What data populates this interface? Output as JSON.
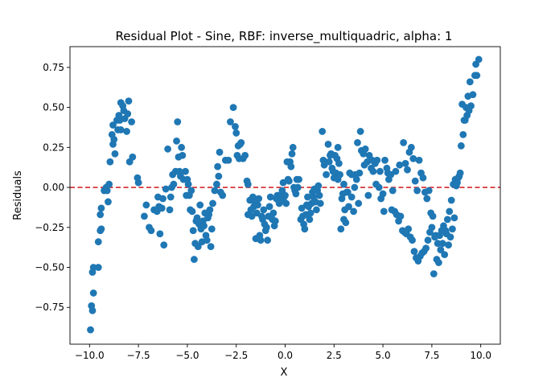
{
  "chart_data": {
    "type": "scatter",
    "title": "Residual Plot - Sine, RBF: inverse_multiquadric, alpha: 1",
    "xlabel": "X",
    "ylabel": "Residuals",
    "xlim": [
      -11.0,
      11.0
    ],
    "ylim": [
      -0.98,
      0.88
    ],
    "xticks": [
      -10.0,
      -7.5,
      -5.0,
      -2.5,
      0.0,
      2.5,
      5.0,
      7.5,
      10.0
    ],
    "xtick_labels": [
      "−10.0",
      "−7.5",
      "−5.0",
      "−2.5",
      "0.0",
      "2.5",
      "5.0",
      "7.5",
      "10.0"
    ],
    "yticks": [
      -0.75,
      -0.5,
      -0.25,
      0.0,
      0.25,
      0.5,
      0.75
    ],
    "ytick_labels": [
      "−0.75",
      "−0.50",
      "−0.25",
      "0.00",
      "0.25",
      "0.50",
      "0.75"
    ],
    "grid": false,
    "point_color": "#1f77b4",
    "reference_line": {
      "y": 0.0,
      "color": "#d62728",
      "style": "dashed"
    },
    "points": [
      [
        -9.95,
        -0.89
      ],
      [
        -9.9,
        -0.74
      ],
      [
        -9.85,
        -0.77
      ],
      [
        -9.85,
        -0.53
      ],
      [
        -9.8,
        -0.66
      ],
      [
        -9.8,
        -0.5
      ],
      [
        -9.55,
        -0.5
      ],
      [
        -9.55,
        -0.34
      ],
      [
        -9.45,
        -0.27
      ],
      [
        -9.45,
        -0.17
      ],
      [
        -9.4,
        -0.26
      ],
      [
        -9.4,
        -0.13
      ],
      [
        -9.25,
        -0.02
      ],
      [
        -9.15,
        0.0
      ],
      [
        -9.1,
        -0.02
      ],
      [
        -9.05,
        -0.09
      ],
      [
        -9.0,
        0.02
      ],
      [
        -8.95,
        0.16
      ],
      [
        -8.85,
        0.33
      ],
      [
        -8.8,
        0.27
      ],
      [
        -8.8,
        0.39
      ],
      [
        -8.75,
        0.3
      ],
      [
        -8.7,
        0.21
      ],
      [
        -8.6,
        0.42
      ],
      [
        -8.55,
        0.36
      ],
      [
        -8.5,
        0.45
      ],
      [
        -8.45,
        0.42
      ],
      [
        -8.4,
        0.36
      ],
      [
        -8.4,
        0.53
      ],
      [
        -8.3,
        0.51
      ],
      [
        -8.25,
        0.48
      ],
      [
        -8.2,
        0.43
      ],
      [
        -8.1,
        0.35
      ],
      [
        -8.05,
        0.46
      ],
      [
        -8.0,
        0.54
      ],
      [
        -7.95,
        0.16
      ],
      [
        -7.85,
        0.41
      ],
      [
        -7.8,
        0.19
      ],
      [
        -7.55,
        0.06
      ],
      [
        -7.5,
        0.03
      ],
      [
        -7.2,
        -0.18
      ],
      [
        -7.1,
        -0.11
      ],
      [
        -6.95,
        -0.25
      ],
      [
        -6.85,
        -0.27
      ],
      [
        -6.7,
        -0.14
      ],
      [
        -6.55,
        -0.15
      ],
      [
        -6.5,
        -0.06
      ],
      [
        -6.45,
        -0.12
      ],
      [
        -6.4,
        -0.29
      ],
      [
        -6.3,
        -0.13
      ],
      [
        -6.25,
        -0.07
      ],
      [
        -6.2,
        -0.36
      ],
      [
        -6.1,
        -0.01
      ],
      [
        -6.0,
        0.24
      ],
      [
        -5.9,
        -0.14
      ],
      [
        -5.85,
        -0.06
      ],
      [
        -5.8,
        0.0
      ],
      [
        -5.75,
        0.08
      ],
      [
        -5.7,
        0.02
      ],
      [
        -5.6,
        0.1
      ],
      [
        -5.55,
        0.29
      ],
      [
        -5.5,
        0.41
      ],
      [
        -5.45,
        0.19
      ],
      [
        -5.4,
        0.1
      ],
      [
        -5.35,
        0.07
      ],
      [
        -5.3,
        0.25
      ],
      [
        -5.25,
        0.2
      ],
      [
        -5.2,
        0.05
      ],
      [
        -5.1,
        0.1
      ],
      [
        -5.05,
        -0.05
      ],
      [
        -5.0,
        0.05
      ],
      [
        -4.95,
        0.02
      ],
      [
        -4.9,
        -0.05
      ],
      [
        -4.85,
        -0.14
      ],
      [
        -4.8,
        -0.02
      ],
      [
        -4.75,
        -0.15
      ],
      [
        -4.7,
        -0.27
      ],
      [
        -4.65,
        -0.45
      ],
      [
        -4.6,
        -0.35
      ],
      [
        -4.55,
        -0.21
      ],
      [
        -4.5,
        -0.19
      ],
      [
        -4.45,
        -0.37
      ],
      [
        -4.4,
        -0.23
      ],
      [
        -4.35,
        -0.11
      ],
      [
        -4.3,
        -0.26
      ],
      [
        -4.25,
        -0.34
      ],
      [
        -4.2,
        -0.21
      ],
      [
        -4.15,
        -0.24
      ],
      [
        -4.1,
        -0.16
      ],
      [
        -4.05,
        -0.3
      ],
      [
        -4.0,
        -0.33
      ],
      [
        -3.95,
        -0.19
      ],
      [
        -3.9,
        -0.17
      ],
      [
        -3.85,
        -0.14
      ],
      [
        -3.8,
        -0.37
      ],
      [
        -3.75,
        -0.26
      ],
      [
        -3.7,
        -0.1
      ],
      [
        -3.6,
        -0.02
      ],
      [
        -3.5,
        0.02
      ],
      [
        -3.45,
        0.13
      ],
      [
        -3.4,
        0.07
      ],
      [
        -3.35,
        0.22
      ],
      [
        -3.3,
        -0.03
      ],
      [
        -3.2,
        -0.05
      ],
      [
        -3.05,
        0.17
      ],
      [
        -2.9,
        0.17
      ],
      [
        -2.8,
        0.41
      ],
      [
        -2.65,
        0.5
      ],
      [
        -2.55,
        0.38
      ],
      [
        -2.5,
        0.34
      ],
      [
        -2.45,
        0.2
      ],
      [
        -2.4,
        0.26
      ],
      [
        -2.35,
        0.18
      ],
      [
        -2.3,
        0.27
      ],
      [
        -2.25,
        0.28
      ],
      [
        -2.15,
        0.18
      ],
      [
        -2.05,
        0.2
      ],
      [
        -1.95,
        0.04
      ],
      [
        -1.9,
        -0.17
      ],
      [
        -1.9,
        0.02
      ],
      [
        -1.8,
        -0.08
      ],
      [
        -1.75,
        -0.14
      ],
      [
        -1.7,
        -0.18
      ],
      [
        -1.65,
        -0.06
      ],
      [
        -1.6,
        -0.12
      ],
      [
        -1.55,
        -0.09
      ],
      [
        -1.5,
        -0.32
      ],
      [
        -1.45,
        -0.16
      ],
      [
        -1.4,
        -0.11
      ],
      [
        -1.35,
        -0.07
      ],
      [
        -1.3,
        -0.3
      ],
      [
        -1.25,
        -0.33
      ],
      [
        -1.2,
        -0.18
      ],
      [
        -1.15,
        -0.2
      ],
      [
        -1.1,
        -0.14
      ],
      [
        -1.05,
        -0.23
      ],
      [
        -1.0,
        -0.27
      ],
      [
        -0.95,
        -0.25
      ],
      [
        -0.9,
        -0.33
      ],
      [
        -0.85,
        -0.18
      ],
      [
        -0.8,
        -0.12
      ],
      [
        -0.75,
        -0.06
      ],
      [
        -0.7,
        -0.19
      ],
      [
        -0.65,
        -0.2
      ],
      [
        -0.6,
        -0.16
      ],
      [
        -0.55,
        -0.24
      ],
      [
        -0.5,
        -0.21
      ],
      [
        -0.45,
        -0.07
      ],
      [
        -0.4,
        -0.05
      ],
      [
        -0.35,
        -0.08
      ],
      [
        -0.3,
        -0.1
      ],
      [
        -0.25,
        -0.05
      ],
      [
        -0.2,
        -0.08
      ],
      [
        -0.15,
        -0.02
      ],
      [
        -0.1,
        0.03
      ],
      [
        -0.05,
        -0.06
      ],
      [
        0.0,
        -0.05
      ],
      [
        0.05,
        -0.1
      ],
      [
        0.1,
        0.16
      ],
      [
        0.15,
        0.05
      ],
      [
        0.2,
        0.04
      ],
      [
        0.25,
        0.16
      ],
      [
        0.3,
        0.13
      ],
      [
        0.35,
        0.21
      ],
      [
        0.4,
        0.25
      ],
      [
        0.45,
        0.0
      ],
      [
        0.5,
        -0.02
      ],
      [
        0.55,
        -0.04
      ],
      [
        0.6,
        0.05
      ],
      [
        0.65,
        0.0
      ],
      [
        0.7,
        0.05
      ],
      [
        0.8,
        -0.2
      ],
      [
        0.85,
        -0.13
      ],
      [
        0.9,
        -0.18
      ],
      [
        0.95,
        -0.23
      ],
      [
        1.0,
        -0.26
      ],
      [
        1.05,
        -0.17
      ],
      [
        1.1,
        -0.11
      ],
      [
        1.15,
        -0.06
      ],
      [
        1.2,
        -0.12
      ],
      [
        1.25,
        -0.2
      ],
      [
        1.3,
        -0.16
      ],
      [
        1.35,
        -0.1
      ],
      [
        1.4,
        -0.03
      ],
      [
        1.45,
        -0.06
      ],
      [
        1.5,
        -0.01
      ],
      [
        1.55,
        -0.09
      ],
      [
        1.6,
        -0.14
      ],
      [
        1.65,
        -0.02
      ],
      [
        1.7,
        0.01
      ],
      [
        1.75,
        -0.05
      ],
      [
        1.8,
        -0.1
      ],
      [
        1.9,
        0.35
      ],
      [
        1.95,
        0.17
      ],
      [
        2.0,
        0.14
      ],
      [
        2.05,
        0.16
      ],
      [
        2.1,
        0.08
      ],
      [
        2.2,
        0.27
      ],
      [
        2.25,
        0.16
      ],
      [
        2.3,
        0.2
      ],
      [
        2.35,
        0.21
      ],
      [
        2.4,
        0.12
      ],
      [
        2.45,
        0.1
      ],
      [
        2.5,
        0.06
      ],
      [
        2.55,
        0.2
      ],
      [
        2.6,
        0.09
      ],
      [
        2.65,
        0.18
      ],
      [
        2.7,
        0.05
      ],
      [
        2.75,
        0.15
      ],
      [
        2.8,
        0.08
      ],
      [
        2.9,
        -0.07
      ],
      [
        2.95,
        -0.04
      ],
      [
        3.0,
        0.02
      ],
      [
        3.05,
        -0.14
      ],
      [
        3.1,
        -0.22
      ],
      [
        3.15,
        -0.03
      ],
      [
        3.2,
        -0.03
      ],
      [
        3.3,
        0.09
      ],
      [
        3.4,
        0.08
      ],
      [
        3.5,
        -0.15
      ],
      [
        3.6,
        0.08
      ],
      [
        3.7,
        0.28
      ],
      [
        3.8,
        0.09
      ],
      [
        3.9,
        0.23
      ],
      [
        4.0,
        0.21
      ],
      [
        4.1,
        0.24
      ],
      [
        4.2,
        0.16
      ],
      [
        4.3,
        0.2
      ],
      [
        4.4,
        0.12
      ],
      [
        4.5,
        0.1
      ],
      [
        4.6,
        0.15
      ],
      [
        4.7,
        0.17
      ],
      [
        4.8,
        0.0
      ],
      [
        4.9,
        -0.07
      ],
      [
        5.0,
        -0.04
      ],
      [
        5.1,
        0.17
      ],
      [
        5.2,
        0.12
      ],
      [
        5.3,
        0.05
      ],
      [
        5.4,
        0.08
      ],
      [
        5.5,
        -0.02
      ],
      [
        5.6,
        -0.15
      ],
      [
        5.7,
        -0.17
      ],
      [
        5.8,
        -0.21
      ],
      [
        5.9,
        -0.18
      ],
      [
        6.0,
        -0.27
      ],
      [
        6.1,
        -0.28
      ],
      [
        6.2,
        -0.29
      ],
      [
        6.3,
        -0.26
      ],
      [
        6.4,
        -0.31
      ],
      [
        6.5,
        -0.33
      ],
      [
        6.6,
        -0.4
      ],
      [
        6.7,
        -0.44
      ],
      [
        6.8,
        -0.46
      ],
      [
        6.9,
        -0.43
      ],
      [
        7.0,
        -0.41
      ],
      [
        7.1,
        -0.4
      ],
      [
        7.2,
        -0.38
      ],
      [
        7.3,
        -0.33
      ],
      [
        7.4,
        -0.28
      ],
      [
        7.5,
        -0.25
      ],
      [
        7.6,
        -0.54
      ],
      [
        7.7,
        -0.3
      ],
      [
        7.8,
        -0.35
      ],
      [
        7.9,
        -0.3
      ],
      [
        8.0,
        -0.27
      ],
      [
        8.1,
        -0.24
      ],
      [
        8.2,
        -0.27
      ],
      [
        8.3,
        -0.2
      ],
      [
        8.4,
        -0.15
      ],
      [
        8.5,
        -0.08
      ],
      [
        8.6,
        0.02
      ],
      [
        8.7,
        0.05
      ],
      [
        8.8,
        0.03
      ],
      [
        8.9,
        0.07
      ],
      [
        9.0,
        0.26
      ],
      [
        9.1,
        0.33
      ],
      [
        9.2,
        0.42
      ],
      [
        9.3,
        0.45
      ],
      [
        9.4,
        0.48
      ],
      [
        9.5,
        0.51
      ],
      [
        9.6,
        0.58
      ],
      [
        9.7,
        0.7
      ],
      [
        9.75,
        0.77
      ],
      [
        9.8,
        0.7
      ],
      [
        9.9,
        0.8
      ],
      [
        2.7,
        0.25
      ],
      [
        2.85,
        -0.26
      ],
      [
        3.0,
        -0.2
      ],
      [
        3.25,
        -0.12
      ],
      [
        3.4,
        -0.06
      ],
      [
        3.55,
        0.0
      ],
      [
        3.65,
        0.05
      ],
      [
        3.75,
        -0.1
      ],
      [
        3.85,
        0.35
      ],
      [
        4.05,
        0.14
      ],
      [
        4.25,
        -0.05
      ],
      [
        4.45,
        0.17
      ],
      [
        4.65,
        0.02
      ],
      [
        4.85,
        0.1
      ],
      [
        5.05,
        -0.15
      ],
      [
        5.25,
        0.09
      ],
      [
        5.45,
        -0.14
      ],
      [
        5.65,
        0.1
      ],
      [
        5.85,
        0.14
      ],
      [
        6.05,
        0.28
      ],
      [
        6.15,
        0.15
      ],
      [
        6.25,
        0.11
      ],
      [
        6.35,
        0.22
      ],
      [
        6.45,
        0.25
      ],
      [
        6.55,
        0.18
      ],
      [
        6.65,
        0.04
      ],
      [
        6.75,
        -0.02
      ],
      [
        6.85,
        0.17
      ],
      [
        6.95,
        0.09
      ],
      [
        7.05,
        0.06
      ],
      [
        7.15,
        -0.03
      ],
      [
        7.25,
        -0.07
      ],
      [
        7.35,
        -0.02
      ],
      [
        7.45,
        -0.16
      ],
      [
        7.55,
        -0.18
      ],
      [
        7.65,
        -0.31
      ],
      [
        7.75,
        -0.45
      ],
      [
        7.85,
        -0.47
      ],
      [
        7.95,
        -0.39
      ],
      [
        8.05,
        -0.35
      ],
      [
        8.15,
        -0.42
      ],
      [
        8.25,
        -0.29
      ],
      [
        8.35,
        -0.36
      ],
      [
        8.45,
        -0.31
      ],
      [
        8.55,
        -0.26
      ],
      [
        8.65,
        -0.19
      ],
      [
        8.75,
        0.01
      ],
      [
        8.85,
        0.06
      ],
      [
        8.95,
        0.09
      ],
      [
        9.05,
        0.52
      ],
      [
        9.15,
        0.42
      ],
      [
        9.25,
        0.5
      ],
      [
        9.35,
        0.57
      ],
      [
        9.45,
        0.66
      ]
    ]
  }
}
